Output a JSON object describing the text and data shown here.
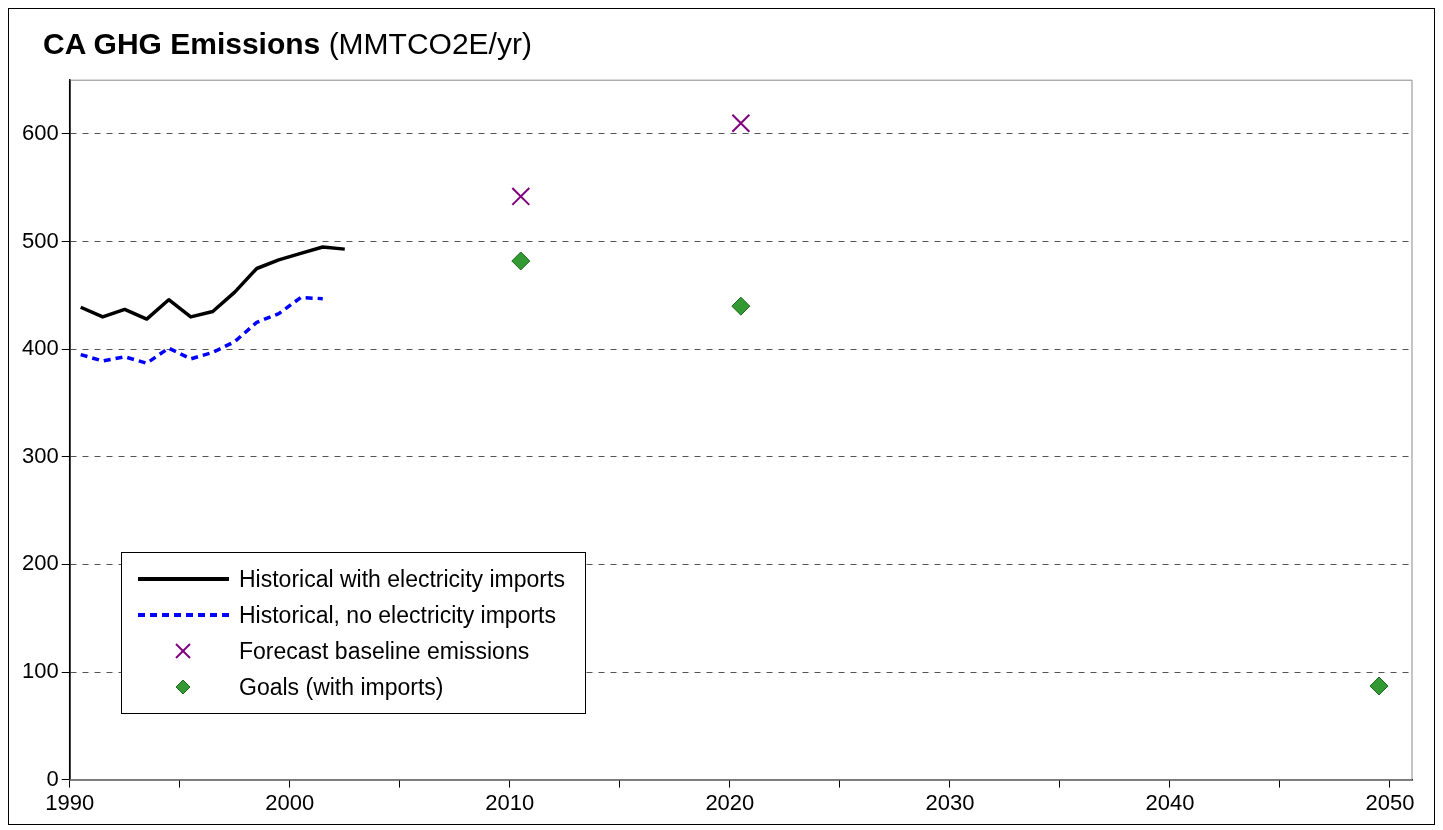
{
  "chart_data": {
    "type": "line",
    "title": "CA GHG Emissions",
    "subtitle": "(MMTCO2E/yr)",
    "xlim": [
      1990,
      2051
    ],
    "xticks": [
      1990,
      {
        "value": 1995,
        "label": null
      },
      2000,
      {
        "value": 2005,
        "label": null
      },
      2010,
      {
        "value": 2015,
        "label": null
      },
      2020,
      {
        "value": 2025,
        "label": null
      },
      2030,
      {
        "value": 2035,
        "label": null
      },
      2040,
      {
        "value": 2045,
        "label": null
      },
      2050
    ],
    "ylim": [
      0,
      650
    ],
    "yticks": [
      0,
      100,
      200,
      300,
      400,
      500,
      600
    ],
    "grid": "y",
    "legend": "bottom left",
    "series": [
      {
        "name": "Historical with electricity imports",
        "type": "line",
        "color": "#000000",
        "line_style": "solid",
        "marker": "none",
        "x": [
          1990.5,
          1991.5,
          1992.5,
          1993.5,
          1994.5,
          1995.5,
          1996.5,
          1997.5,
          1998.5,
          1999.5,
          2000.5,
          2001.5,
          2002.5
        ],
        "values": [
          439,
          430,
          437,
          428,
          446,
          430,
          435,
          453,
          475,
          483,
          489,
          495,
          493
        ]
      },
      {
        "name": "Historical, no electricity imports",
        "type": "line",
        "color": "#0000ff",
        "line_style": "dashed",
        "marker": "none",
        "x": [
          1990.5,
          1991.5,
          1992.5,
          1993.5,
          1994.5,
          1995.5,
          1996.5,
          1997.5,
          1998.5,
          1999.5,
          2000.5,
          2001.5
        ],
        "values": [
          395,
          389,
          393,
          387,
          401,
          391,
          397,
          407,
          425,
          433,
          448,
          447
        ]
      },
      {
        "name": "Forecast baseline emissions",
        "type": "scatter",
        "color": "#800080",
        "marker": "cross",
        "x": [
          2010.5,
          2020.5
        ],
        "values": [
          542,
          610
        ]
      },
      {
        "name": "Goals (with imports)",
        "type": "scatter",
        "color": "#339933",
        "marker": "diamond",
        "x": [
          2010.5,
          2020.5,
          2049.5
        ],
        "values": [
          482,
          440,
          87
        ]
      }
    ]
  }
}
